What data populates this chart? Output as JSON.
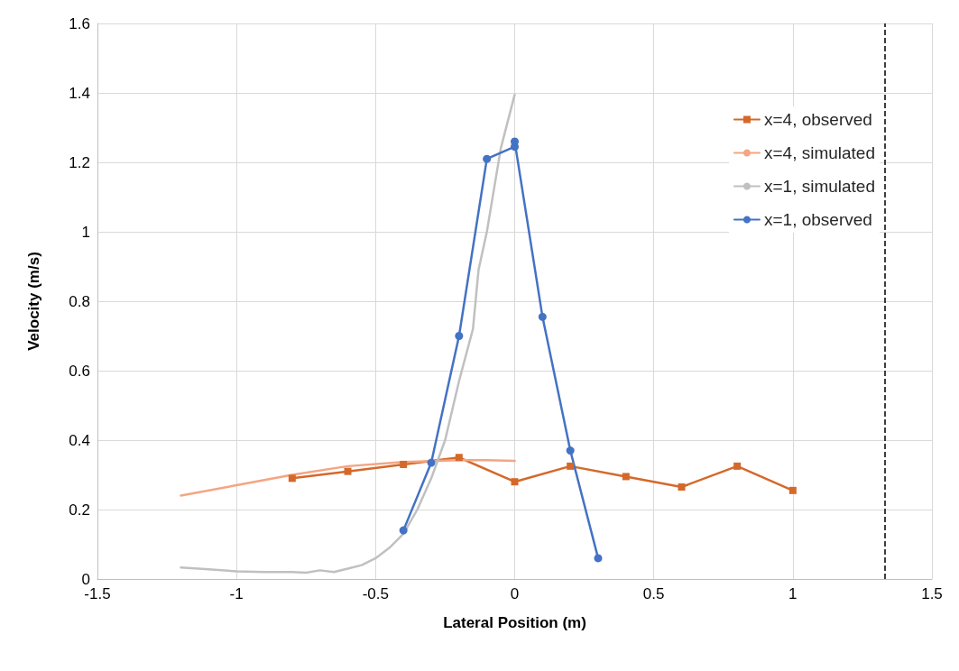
{
  "chart_data": {
    "type": "line",
    "xlabel": "Lateral Position (m)",
    "ylabel": "Velocity (m/s)",
    "xlim": [
      -1.5,
      1.5
    ],
    "xticks": [
      -1.5,
      -1,
      -0.5,
      0,
      0.5,
      1,
      1.5
    ],
    "ylim": [
      0,
      1.6
    ],
    "yticks": [
      0,
      0.2,
      0.4,
      0.6,
      0.8,
      1,
      1.2,
      1.4,
      1.6
    ],
    "grid": true,
    "legend": "right",
    "line_style": "solid",
    "ref_lines": [
      {
        "axis": "x",
        "value": 1.33,
        "label": null,
        "color": "#000000",
        "line_style": "dashed"
      }
    ],
    "series": [
      {
        "name": "x=4, observed",
        "color": "#d4692a",
        "marker": "square",
        "x": [
          -0.8,
          -0.6,
          -0.4,
          -0.2,
          0,
          0.2,
          0.4,
          0.6,
          0.8,
          1.0
        ],
        "values": [
          0.29,
          0.31,
          0.33,
          0.35,
          0.28,
          0.325,
          0.295,
          0.265,
          0.325,
          0.255
        ]
      },
      {
        "name": "x=4, simulated",
        "color": "#f4a582",
        "marker": "none",
        "x": [
          -1.2,
          -1.0,
          -0.8,
          -0.6,
          -0.4,
          -0.2,
          -0.1,
          0
        ],
        "values": [
          0.24,
          0.27,
          0.3,
          0.325,
          0.337,
          0.342,
          0.342,
          0.34
        ]
      },
      {
        "name": "x=1, simulated",
        "color": "#c0c0c0",
        "marker": "none",
        "x": [
          -1.2,
          -1.1,
          -1.0,
          -0.9,
          -0.8,
          -0.75,
          -0.7,
          -0.65,
          -0.6,
          -0.55,
          -0.5,
          -0.45,
          -0.4,
          -0.35,
          -0.3,
          -0.25,
          -0.2,
          -0.15,
          -0.13,
          -0.1,
          -0.05,
          0
        ],
        "values": [
          0.033,
          0.028,
          0.022,
          0.02,
          0.02,
          0.018,
          0.025,
          0.02,
          0.03,
          0.04,
          0.06,
          0.09,
          0.13,
          0.2,
          0.29,
          0.4,
          0.57,
          0.72,
          0.89,
          1.0,
          1.24,
          1.395
        ]
      },
      {
        "name": "x=1, observed",
        "color": "#4472c4",
        "marker": "circle",
        "x": [
          -0.4,
          -0.3,
          -0.2,
          -0.1,
          0,
          0,
          0.1,
          0.2,
          0.3
        ],
        "values": [
          0.14,
          0.335,
          0.7,
          1.21,
          1.245,
          1.26,
          0.755,
          0.37,
          0.06
        ]
      }
    ]
  }
}
